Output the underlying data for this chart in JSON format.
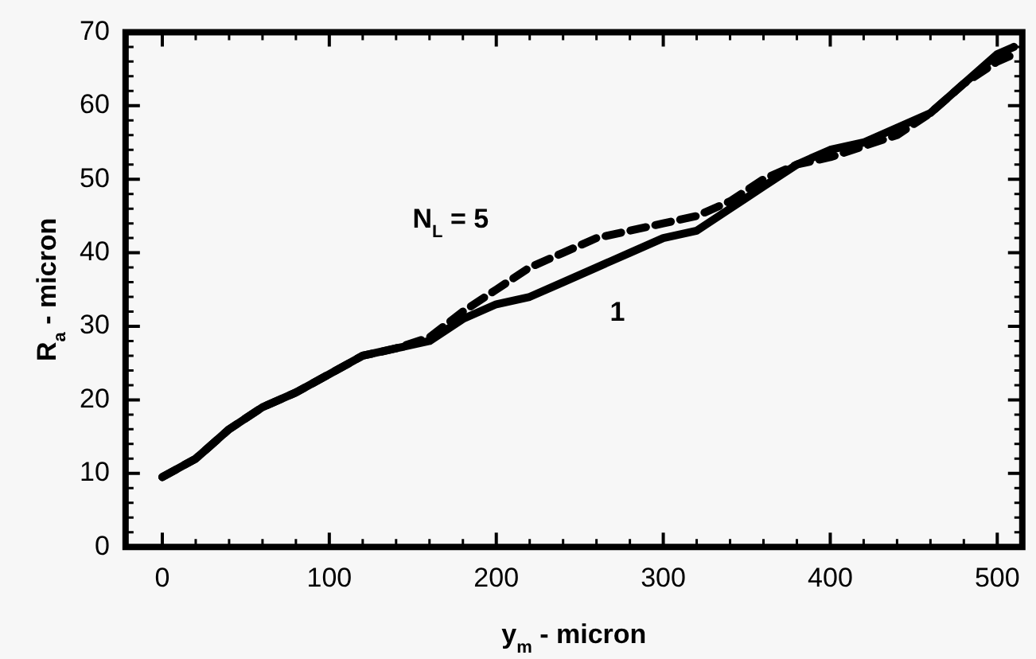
{
  "chart_data": {
    "type": "line",
    "xlabel": "y$_{m}$ - micron",
    "ylabel": "R$_{a}$ - micron",
    "xlim": [
      -22,
      515
    ],
    "ylim": [
      0,
      70
    ],
    "xticks": [
      0,
      100,
      200,
      300,
      400,
      500
    ],
    "yticks": [
      0,
      10,
      20,
      30,
      40,
      50,
      60,
      70
    ],
    "grid": false,
    "legend": false,
    "marker": "none",
    "series": [
      {
        "name": "N$_{L}$ = 5",
        "color": "#000000",
        "line_style": "dashed",
        "x": [
          0,
          20,
          40,
          60,
          80,
          100,
          120,
          140,
          160,
          180,
          200,
          220,
          240,
          260,
          280,
          300,
          320,
          340,
          360,
          380,
          400,
          420,
          440,
          460,
          480,
          500,
          510
        ],
        "values": [
          9.5,
          12,
          16,
          19,
          21,
          23.5,
          26,
          27,
          28.5,
          32,
          35,
          38,
          40,
          42,
          43,
          44,
          45,
          47,
          50,
          52,
          53,
          54.5,
          56,
          59,
          63,
          66,
          67
        ]
      },
      {
        "name": "1",
        "color": "#000000",
        "line_style": "solid",
        "x": [
          0,
          20,
          40,
          60,
          80,
          100,
          120,
          140,
          160,
          180,
          200,
          220,
          240,
          260,
          280,
          300,
          320,
          340,
          360,
          380,
          400,
          420,
          440,
          460,
          480,
          500,
          510
        ],
        "values": [
          9.5,
          12,
          16,
          19,
          21,
          23.5,
          26,
          27,
          28,
          31,
          33,
          34,
          36,
          38,
          40,
          42,
          43,
          46,
          49,
          52,
          54,
          55,
          57,
          59,
          63,
          67,
          68
        ]
      }
    ]
  }
}
